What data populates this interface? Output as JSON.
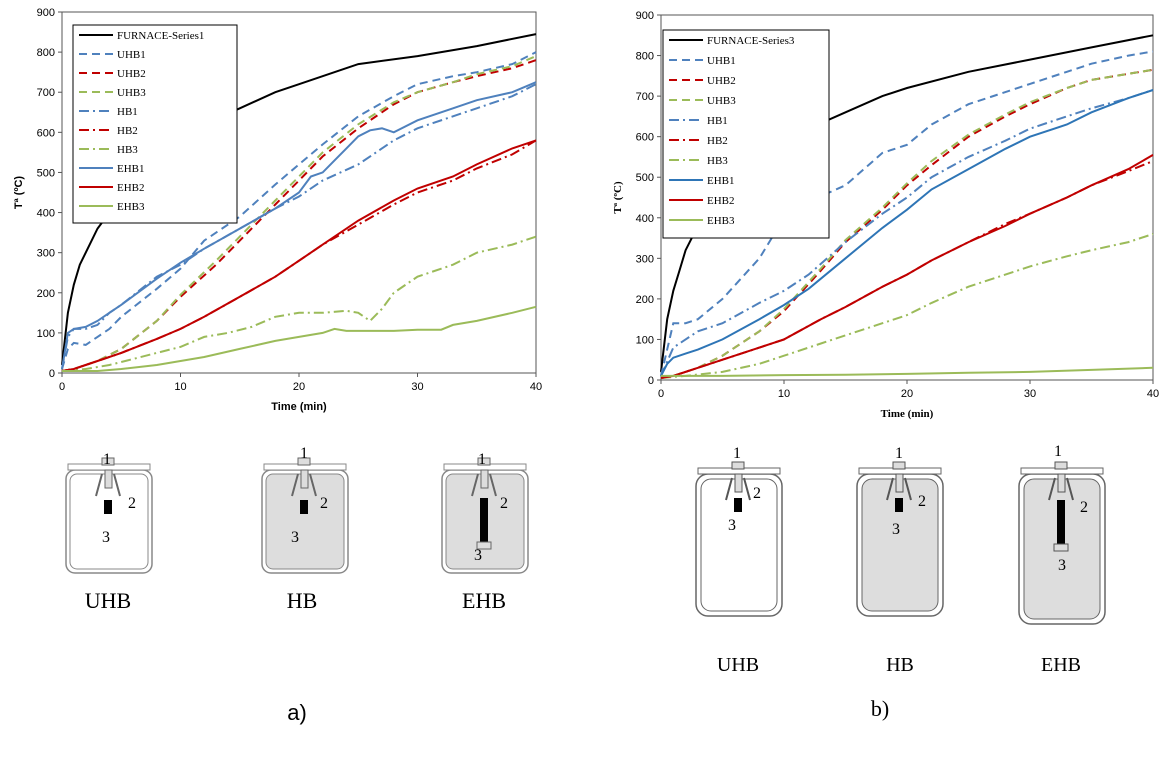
{
  "chart_data": [
    {
      "type": "line",
      "panel": "a)",
      "xlabel": "Time (min)",
      "ylabel": "Tª (ºC)",
      "xlim": [
        0,
        40
      ],
      "ylim": [
        0,
        900
      ],
      "xticks": [
        "0",
        "10",
        "20",
        "30",
        "40"
      ],
      "yticks": [
        "0",
        "100",
        "200",
        "300",
        "400",
        "500",
        "600",
        "700",
        "800",
        "900"
      ],
      "grid": false,
      "legend_position": "top-left",
      "series": [
        {
          "name": "FURNACE-Series1",
          "color": "#000000",
          "dash": "solid",
          "x": [
            0,
            0.5,
            1,
            1.5,
            2,
            3,
            4,
            5,
            6,
            8,
            10,
            12,
            15,
            18,
            20,
            25,
            30,
            35,
            40
          ],
          "y": [
            20,
            150,
            220,
            270,
            300,
            360,
            400,
            440,
            470,
            530,
            580,
            620,
            660,
            700,
            720,
            770,
            790,
            815,
            845
          ]
        },
        {
          "name": "UHB1",
          "color": "#4f81bd",
          "dash": "dash",
          "x": [
            0,
            0.5,
            1,
            2,
            3,
            4,
            5,
            8,
            10,
            12,
            15,
            18,
            20,
            22,
            25,
            28,
            30,
            33,
            35,
            38,
            40
          ],
          "y": [
            10,
            60,
            75,
            70,
            90,
            110,
            140,
            210,
            260,
            330,
            390,
            470,
            520,
            570,
            640,
            690,
            720,
            740,
            750,
            770,
            800
          ]
        },
        {
          "name": "UHB2",
          "color": "#c00000",
          "dash": "dash",
          "x": [
            0,
            1,
            3,
            5,
            8,
            10,
            13,
            15,
            18,
            20,
            22,
            25,
            28,
            30,
            33,
            35,
            38,
            40
          ],
          "y": [
            5,
            10,
            30,
            60,
            130,
            190,
            270,
            330,
            420,
            480,
            540,
            610,
            670,
            700,
            725,
            740,
            760,
            780
          ]
        },
        {
          "name": "UHB3",
          "color": "#9bbb59",
          "dash": "dash",
          "x": [
            0,
            1,
            3,
            5,
            8,
            10,
            13,
            15,
            18,
            20,
            22,
            25,
            28,
            30,
            33,
            35,
            38,
            40
          ],
          "y": [
            5,
            10,
            30,
            60,
            130,
            195,
            280,
            340,
            430,
            490,
            550,
            620,
            675,
            700,
            725,
            745,
            765,
            790
          ]
        },
        {
          "name": "HB1",
          "color": "#4f81bd",
          "dash": "dashdot",
          "x": [
            0,
            0.5,
            1,
            2,
            3,
            4,
            5,
            8,
            10,
            12,
            15,
            18,
            20,
            22,
            25,
            28,
            30,
            33,
            35,
            38,
            40
          ],
          "y": [
            10,
            90,
            110,
            110,
            120,
            150,
            170,
            240,
            270,
            310,
            360,
            410,
            440,
            480,
            520,
            580,
            610,
            640,
            660,
            690,
            720
          ]
        },
        {
          "name": "HB2",
          "color": "#c00000",
          "dash": "dashdot",
          "x": [
            0,
            1,
            3,
            5,
            8,
            10,
            12,
            15,
            18,
            20,
            22,
            25,
            28,
            30,
            33,
            35,
            38,
            40
          ],
          "y": [
            5,
            10,
            30,
            50,
            85,
            110,
            140,
            190,
            240,
            280,
            320,
            370,
            420,
            450,
            480,
            510,
            545,
            580
          ]
        },
        {
          "name": "HB3",
          "color": "#9bbb59",
          "dash": "dashdot",
          "x": [
            0,
            2,
            4,
            6,
            8,
            10,
            12,
            14,
            16,
            18,
            20,
            22,
            24,
            25,
            26,
            27,
            28,
            30,
            33,
            35,
            38,
            40
          ],
          "y": [
            5,
            10,
            20,
            35,
            50,
            65,
            90,
            100,
            115,
            140,
            150,
            150,
            155,
            150,
            130,
            160,
            200,
            240,
            270,
            300,
            320,
            340
          ]
        },
        {
          "name": "EHB1",
          "color": "#4f81bd",
          "dash": "solid",
          "x": [
            0,
            0.5,
            1,
            2,
            3,
            4,
            5,
            8,
            10,
            12,
            15,
            18,
            20,
            21,
            22,
            23,
            24,
            25,
            26,
            27,
            28,
            30,
            33,
            35,
            38,
            40
          ],
          "y": [
            10,
            100,
            110,
            115,
            130,
            150,
            170,
            235,
            275,
            310,
            360,
            410,
            450,
            490,
            500,
            530,
            560,
            590,
            605,
            610,
            600,
            630,
            660,
            680,
            700,
            725
          ]
        },
        {
          "name": "EHB2",
          "color": "#c00000",
          "dash": "solid",
          "x": [
            0,
            1,
            3,
            5,
            8,
            10,
            12,
            15,
            18,
            20,
            22,
            25,
            28,
            30,
            33,
            35,
            38,
            40
          ],
          "y": [
            5,
            10,
            30,
            50,
            85,
            110,
            140,
            190,
            240,
            280,
            320,
            380,
            430,
            460,
            490,
            520,
            560,
            580
          ]
        },
        {
          "name": "EHB3",
          "color": "#9bbb59",
          "dash": "solid",
          "x": [
            0,
            3,
            5,
            8,
            10,
            12,
            15,
            18,
            20,
            22,
            23,
            24,
            25,
            28,
            30,
            32,
            33,
            35,
            38,
            40
          ],
          "y": [
            5,
            5,
            10,
            20,
            30,
            40,
            60,
            80,
            90,
            100,
            110,
            105,
            105,
            105,
            108,
            108,
            120,
            130,
            150,
            165
          ]
        }
      ]
    },
    {
      "type": "line",
      "panel": "b)",
      "xlabel": "Time (min)",
      "ylabel": "Tª (ºC)",
      "xlim": [
        0,
        40
      ],
      "ylim": [
        0,
        900
      ],
      "xticks": [
        "0",
        "10",
        "20",
        "30",
        "40"
      ],
      "yticks": [
        "0",
        "100",
        "200",
        "300",
        "400",
        "500",
        "600",
        "700",
        "800",
        "900"
      ],
      "grid": false,
      "legend_position": "top-left",
      "series": [
        {
          "name": "FURNACE-Series3",
          "color": "#000000",
          "dash": "solid",
          "x": [
            0,
            0.5,
            1,
            1.5,
            2,
            3,
            4,
            5,
            6,
            8,
            10,
            12,
            15,
            18,
            20,
            25,
            30,
            35,
            40
          ],
          "y": [
            20,
            150,
            220,
            270,
            320,
            380,
            420,
            460,
            500,
            550,
            590,
            620,
            660,
            700,
            720,
            760,
            790,
            820,
            850
          ]
        },
        {
          "name": "UHB1",
          "color": "#4f81bd",
          "dash": "dash",
          "x": [
            0,
            1,
            2,
            3,
            5,
            8,
            10,
            12,
            15,
            18,
            20,
            22,
            25,
            28,
            30,
            33,
            35,
            38,
            40
          ],
          "y": [
            10,
            140,
            140,
            150,
            200,
            300,
            400,
            440,
            480,
            560,
            580,
            630,
            680,
            710,
            730,
            760,
            780,
            800,
            810
          ]
        },
        {
          "name": "UHB2",
          "color": "#c00000",
          "dash": "dash",
          "x": [
            0,
            1,
            3,
            5,
            8,
            10,
            13,
            15,
            18,
            20,
            22,
            25,
            28,
            30,
            33,
            35,
            38,
            40
          ],
          "y": [
            5,
            10,
            30,
            60,
            120,
            170,
            270,
            340,
            420,
            480,
            530,
            600,
            650,
            680,
            720,
            740,
            755,
            765
          ]
        },
        {
          "name": "UHB3",
          "color": "#9bbb59",
          "dash": "dash",
          "x": [
            0,
            1,
            3,
            5,
            8,
            10,
            13,
            15,
            18,
            20,
            22,
            25,
            28,
            30,
            33,
            35,
            38,
            40
          ],
          "y": [
            5,
            10,
            30,
            60,
            120,
            175,
            275,
            345,
            425,
            485,
            540,
            605,
            655,
            685,
            720,
            740,
            755,
            765
          ]
        },
        {
          "name": "HB1",
          "color": "#4f81bd",
          "dash": "dashdot",
          "x": [
            0,
            1,
            2,
            3,
            5,
            8,
            10,
            12,
            15,
            18,
            20,
            22,
            25,
            28,
            30,
            33,
            35,
            38,
            40
          ],
          "y": [
            10,
            80,
            100,
            120,
            140,
            190,
            220,
            260,
            340,
            410,
            450,
            500,
            550,
            590,
            620,
            650,
            670,
            695,
            715
          ]
        },
        {
          "name": "HB2",
          "color": "#c00000",
          "dash": "dashdot",
          "x": [
            0,
            1,
            3,
            5,
            8,
            10,
            13,
            15,
            18,
            20,
            22,
            25,
            28,
            30,
            33,
            35,
            38,
            40
          ],
          "y": [
            5,
            10,
            30,
            50,
            80,
            100,
            150,
            180,
            230,
            260,
            295,
            340,
            385,
            410,
            450,
            480,
            515,
            540
          ]
        },
        {
          "name": "HB3",
          "color": "#9bbb59",
          "dash": "dashdot",
          "x": [
            0,
            2,
            5,
            8,
            10,
            13,
            15,
            18,
            20,
            22,
            25,
            28,
            30,
            33,
            35,
            38,
            40
          ],
          "y": [
            5,
            10,
            20,
            40,
            60,
            90,
            110,
            140,
            160,
            190,
            230,
            260,
            280,
            305,
            320,
            340,
            360
          ]
        },
        {
          "name": "EHB1",
          "color": "#2e75b6",
          "dash": "solid",
          "x": [
            0,
            0.5,
            1,
            2,
            3,
            5,
            8,
            10,
            12,
            15,
            18,
            20,
            22,
            25,
            28,
            30,
            33,
            35,
            38,
            40
          ],
          "y": [
            10,
            40,
            55,
            65,
            75,
            100,
            150,
            185,
            225,
            300,
            375,
            420,
            470,
            520,
            570,
            600,
            630,
            660,
            695,
            715
          ]
        },
        {
          "name": "EHB2",
          "color": "#c00000",
          "dash": "solid",
          "x": [
            0,
            1,
            3,
            5,
            8,
            10,
            13,
            15,
            18,
            20,
            22,
            25,
            28,
            30,
            33,
            35,
            38,
            40
          ],
          "y": [
            5,
            10,
            30,
            50,
            80,
            100,
            150,
            180,
            230,
            260,
            295,
            340,
            380,
            410,
            450,
            480,
            520,
            555
          ]
        },
        {
          "name": "EHB3",
          "color": "#9bbb59",
          "dash": "solid",
          "x": [
            0,
            5,
            10,
            15,
            20,
            25,
            30,
            35,
            40
          ],
          "y": [
            10,
            10,
            12,
            13,
            15,
            18,
            20,
            25,
            30
          ]
        }
      ]
    }
  ],
  "sections_a": {
    "labels": [
      "UHB",
      "HB",
      "EHB"
    ],
    "numbers": {
      "one": "1",
      "two": "2",
      "three": "3"
    },
    "panel": "a)"
  },
  "sections_b": {
    "labels": [
      "UHB",
      "HB",
      "EHB"
    ],
    "numbers": {
      "one": "1",
      "two": "2",
      "three": "3"
    },
    "panel": "b)"
  }
}
